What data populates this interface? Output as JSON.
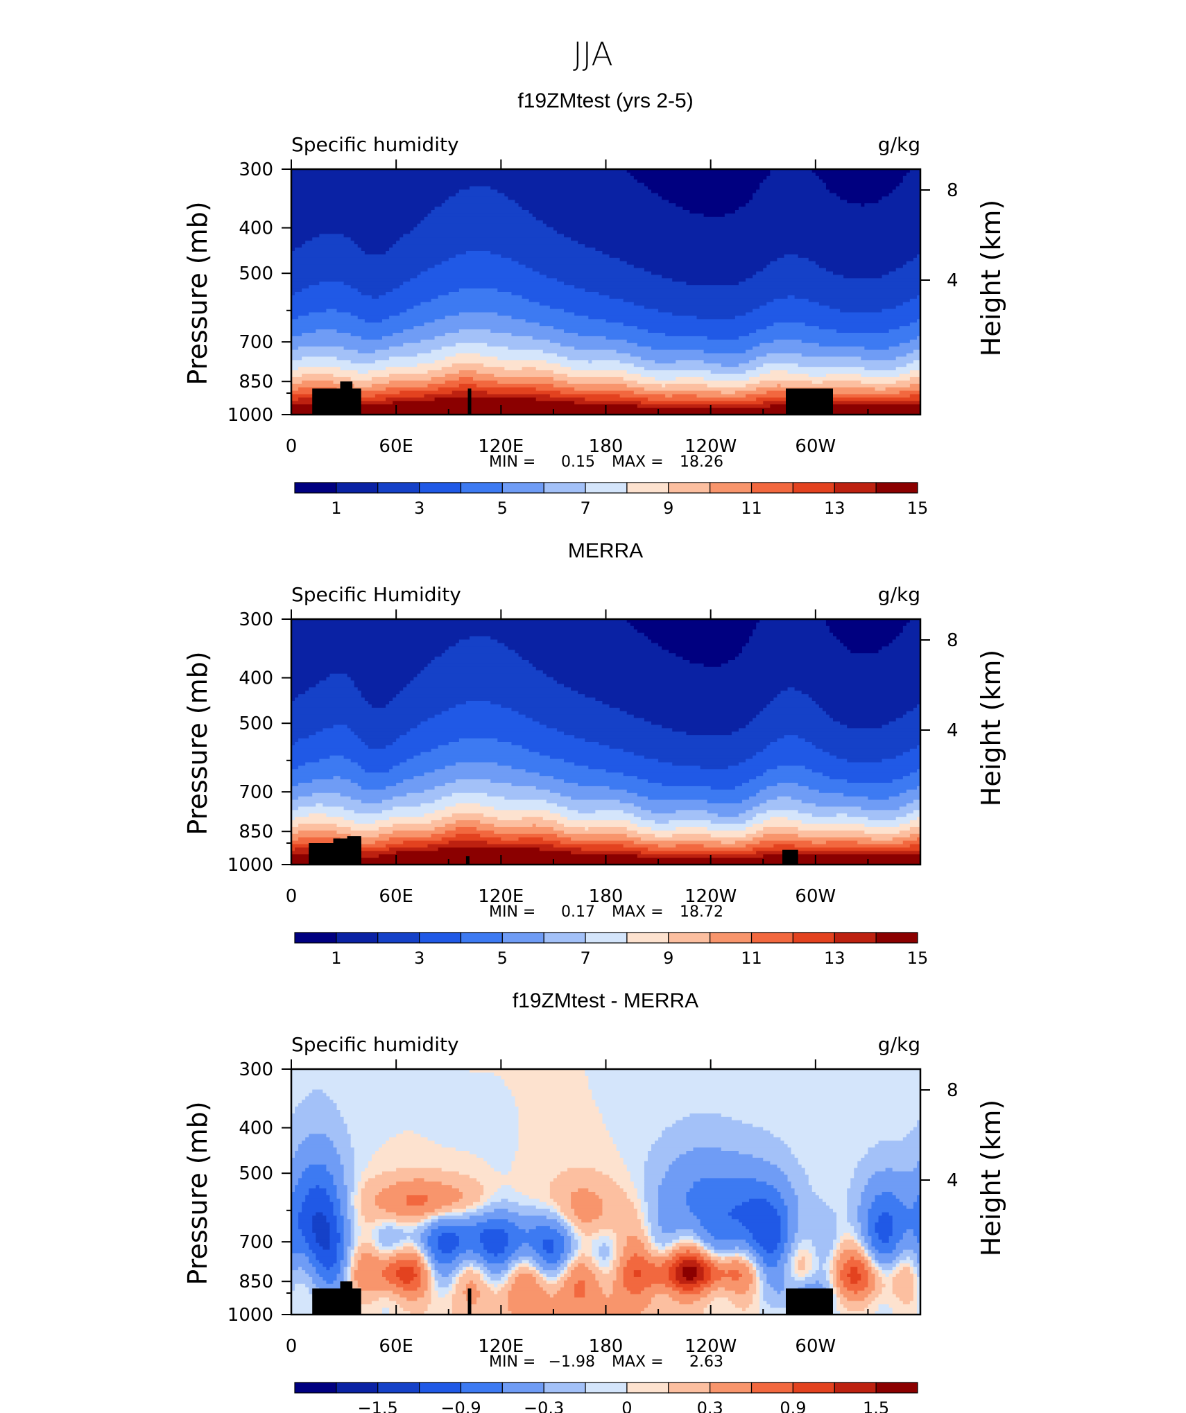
{
  "figure_title": "JJA",
  "chart_data": [
    {
      "type": "heatmap",
      "title": "f19ZMtest (yrs 2-5)",
      "left_label": "Specific humidity",
      "right_label": "g/kg",
      "ylabel": "Pressure (mb)",
      "y2label": "Height (km)",
      "x_ticklabels": [
        "0",
        "60E",
        "120E",
        "180",
        "120W",
        "60W"
      ],
      "y_ticklabels": [
        "300",
        "400",
        "500",
        "700",
        "850",
        "1000"
      ],
      "y2_ticklabels": [
        "8",
        "4"
      ],
      "xlim": [
        0,
        360
      ],
      "ylim": [
        1000,
        300
      ],
      "y_scale": "log",
      "min_label": "MIN =",
      "min_value": "0.15",
      "max_label": "MAX =",
      "max_value": "18.26",
      "colorbar_ticks": [
        "1",
        "3",
        "5",
        "7",
        "9",
        "11",
        "13",
        "15"
      ],
      "colorbar_levels": [
        1,
        2,
        3,
        4,
        5,
        6,
        7,
        8,
        9,
        10,
        11,
        12,
        13,
        14,
        15
      ],
      "colors": [
        "#000080",
        "#0a22a4",
        "#1541c8",
        "#2059e6",
        "#3d7af2",
        "#6f9cf5",
        "#a3c1f8",
        "#d4e5fb",
        "#fde2cf",
        "#fcbfa0",
        "#f8956c",
        "#f2683f",
        "#e3421f",
        "#bd2110",
        "#8b0000"
      ]
    },
    {
      "type": "heatmap",
      "title": "MERRA",
      "left_label": "Specific Humidity",
      "right_label": "g/kg",
      "ylabel": "Pressure (mb)",
      "y2label": "Height (km)",
      "x_ticklabels": [
        "0",
        "60E",
        "120E",
        "180",
        "120W",
        "60W"
      ],
      "y_ticklabels": [
        "300",
        "400",
        "500",
        "700",
        "850",
        "1000"
      ],
      "y2_ticklabels": [
        "8",
        "4"
      ],
      "xlim": [
        0,
        360
      ],
      "ylim": [
        1000,
        300
      ],
      "y_scale": "log",
      "min_label": "MIN =",
      "min_value": "0.17",
      "max_label": "MAX =",
      "max_value": "18.72",
      "colorbar_ticks": [
        "1",
        "3",
        "5",
        "7",
        "9",
        "11",
        "13",
        "15"
      ],
      "colorbar_levels": [
        1,
        2,
        3,
        4,
        5,
        6,
        7,
        8,
        9,
        10,
        11,
        12,
        13,
        14,
        15
      ],
      "colors": [
        "#000080",
        "#0a22a4",
        "#1541c8",
        "#2059e6",
        "#3d7af2",
        "#6f9cf5",
        "#a3c1f8",
        "#d4e5fb",
        "#fde2cf",
        "#fcbfa0",
        "#f8956c",
        "#f2683f",
        "#e3421f",
        "#bd2110",
        "#8b0000"
      ]
    },
    {
      "type": "heatmap",
      "title": "f19ZMtest - MERRA",
      "left_label": "Specific humidity",
      "right_label": "g/kg",
      "ylabel": "Pressure (mb)",
      "y2label": "Height (km)",
      "x_ticklabels": [
        "0",
        "60E",
        "120E",
        "180",
        "120W",
        "60W"
      ],
      "y_ticklabels": [
        "300",
        "400",
        "500",
        "700",
        "850",
        "1000"
      ],
      "y2_ticklabels": [
        "8",
        "4"
      ],
      "xlim": [
        0,
        360
      ],
      "ylim": [
        1000,
        300
      ],
      "y_scale": "log",
      "min_label": "MIN =",
      "min_value": "−1.98",
      "max_label": "MAX =",
      "max_value": "2.63",
      "colorbar_ticks": [
        "−1.5",
        "−0.9",
        "−0.3",
        "0",
        "0.3",
        "0.9",
        "1.5"
      ],
      "colorbar_levels": [
        -1.8,
        -1.5,
        -1.2,
        -0.9,
        -0.6,
        -0.3,
        -0.1,
        0,
        0.1,
        0.3,
        0.6,
        0.9,
        1.2,
        1.5,
        1.8
      ],
      "colors": [
        "#000080",
        "#0a22a4",
        "#1541c8",
        "#2059e6",
        "#3d7af2",
        "#6f9cf5",
        "#a3c1f8",
        "#d4e5fb",
        "#fde2cf",
        "#fcbfa0",
        "#f8956c",
        "#f2683f",
        "#e3421f",
        "#bd2110",
        "#8b0000"
      ]
    }
  ]
}
